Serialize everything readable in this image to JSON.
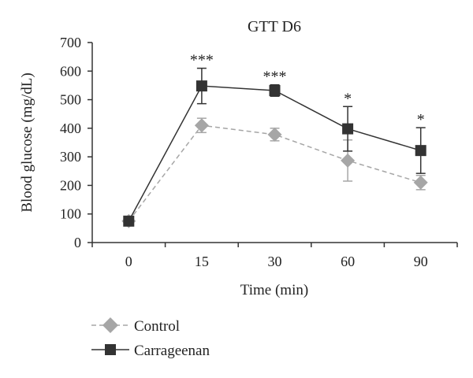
{
  "chart_data": {
    "type": "line",
    "title": "GTT D6",
    "xlabel": "Time (min)",
    "ylabel": "Blood glucose (mg/dL)",
    "categories": [
      "0",
      "15",
      "30",
      "60",
      "90"
    ],
    "ylim": [
      0,
      700
    ],
    "yticks": [
      "0",
      "100",
      "200",
      "300",
      "400",
      "500",
      "600",
      "700"
    ],
    "grid": false,
    "legend_position": "bottom-left",
    "series": [
      {
        "name": "Control",
        "values": [
          75,
          410,
          378,
          287,
          210
        ],
        "errors": [
          10,
          25,
          22,
          72,
          25
        ],
        "color": "#a6a6a6",
        "line_style": "dashed",
        "marker": "diamond"
      },
      {
        "name": "Carrageenan",
        "values": [
          75,
          548,
          532,
          398,
          322
        ],
        "errors": [
          10,
          62,
          20,
          78,
          80
        ],
        "color": "#333333",
        "line_style": "solid",
        "marker": "square"
      }
    ],
    "annotations": [
      "",
      "***",
      "***",
      "*",
      "*"
    ]
  }
}
